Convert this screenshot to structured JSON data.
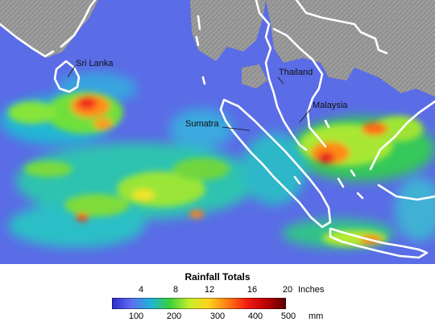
{
  "map": {
    "labels": {
      "sri_lanka": "Sri Lanka",
      "thailand": "Thailand",
      "malaysia": "Malaysia",
      "sumatra": "Sumatra"
    },
    "colors": {
      "land_no_data": "#8f8f8f",
      "ocean_low": "#5a6ce6",
      "coastline": "#ffffff"
    }
  },
  "legend": {
    "title": "Rainfall Totals",
    "inch_ticks": [
      "4",
      "8",
      "12",
      "16",
      "20"
    ],
    "inch_unit": "Inches",
    "mm_ticks": [
      "100",
      "200",
      "300",
      "400",
      "500"
    ],
    "mm_unit": "mm",
    "color_stops": [
      "#2a2acb",
      "#5f6df0",
      "#1fb3d9",
      "#38d13a",
      "#c8ee2c",
      "#ffd21c",
      "#ff7a12",
      "#f21a12",
      "#b80000",
      "#5a0000"
    ]
  }
}
